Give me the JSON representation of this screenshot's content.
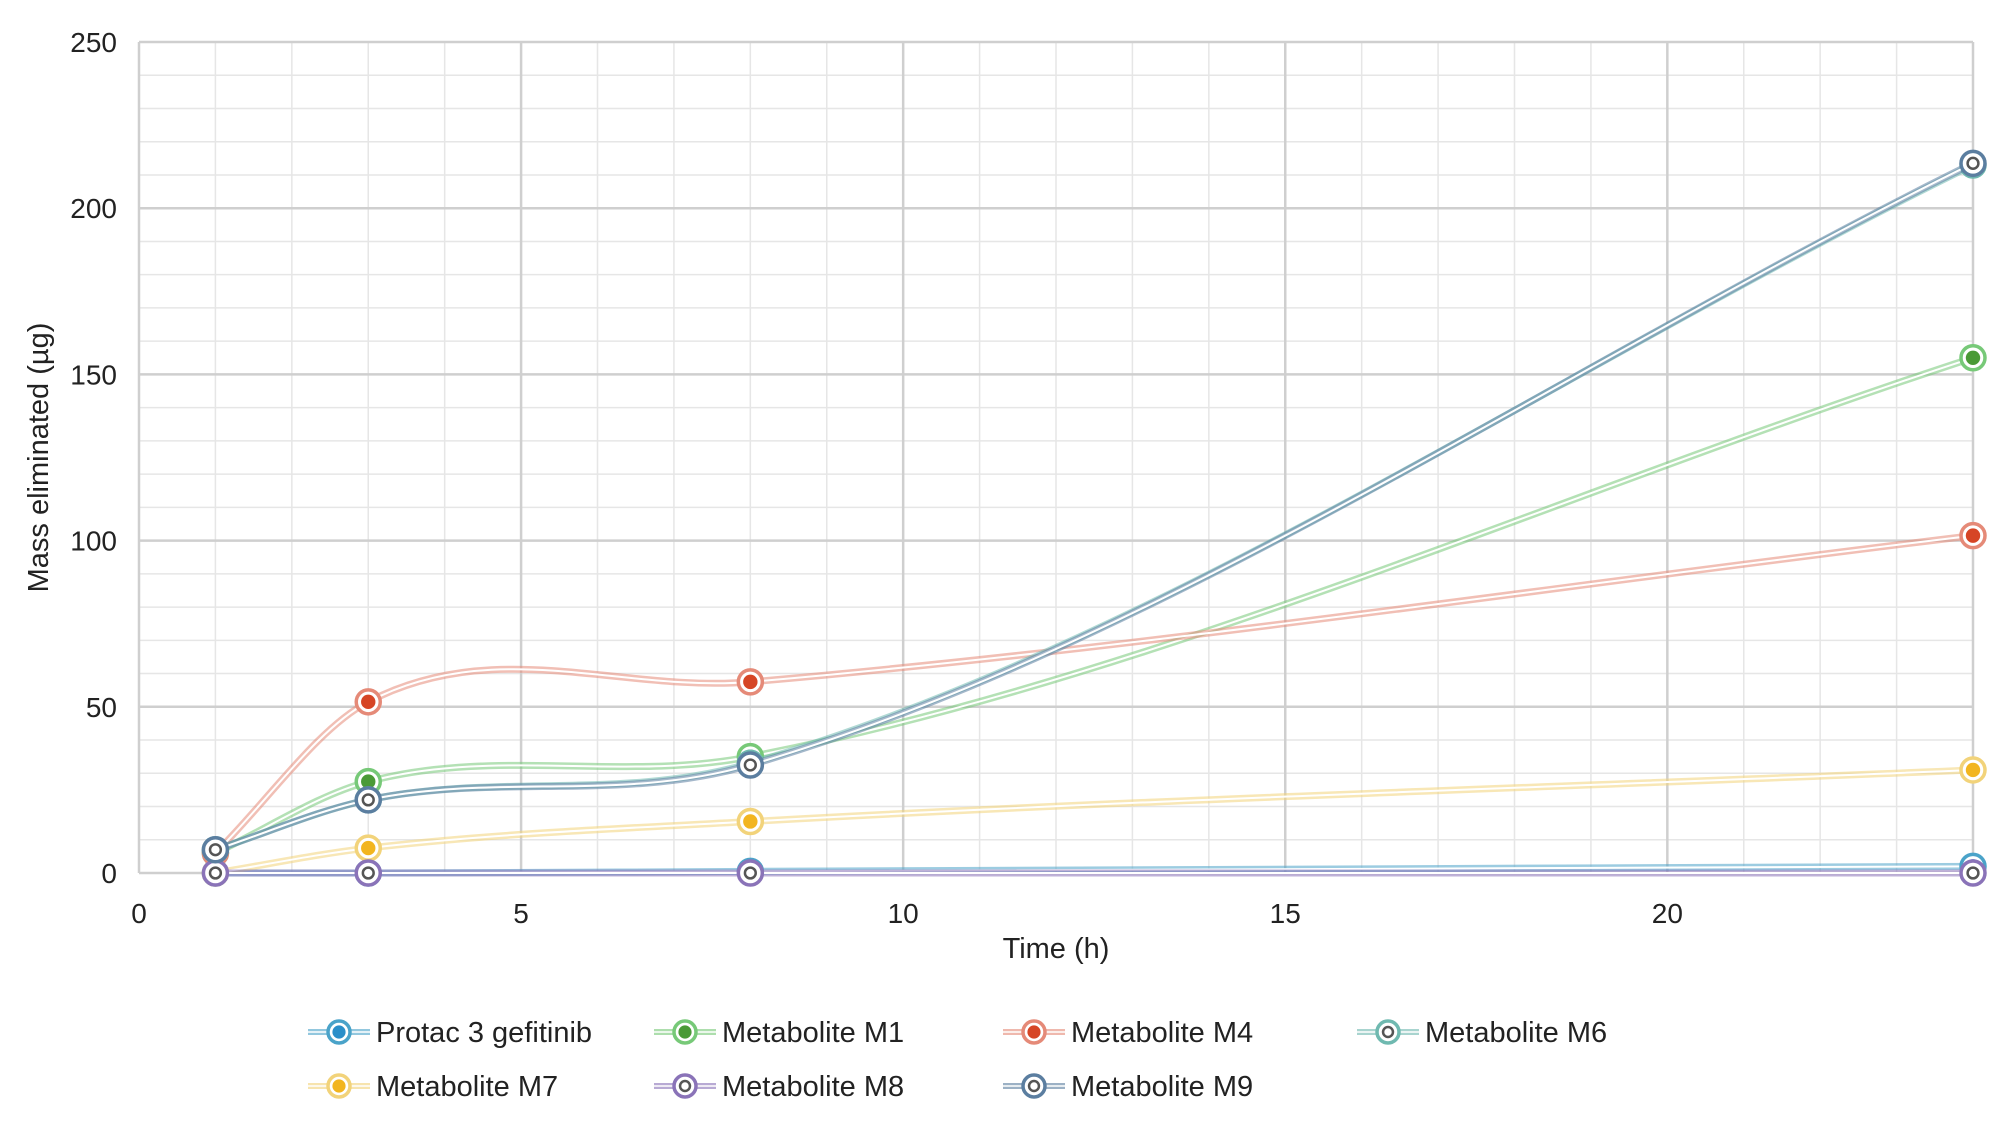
{
  "chart_data": {
    "type": "line",
    "title": "",
    "xlabel": "Time (h)",
    "ylabel": "Mass eliminated (µg)",
    "xlim": [
      0,
      24
    ],
    "ylim": [
      0,
      250
    ],
    "xticks": [
      0,
      5,
      10,
      15,
      20
    ],
    "yticks": [
      0,
      50,
      100,
      150,
      200,
      250
    ],
    "x_minor_step": 1,
    "y_minor_step": 10,
    "grid": true,
    "legend_position": "bottom",
    "x": [
      1,
      3,
      8,
      24
    ],
    "series": [
      {
        "name": "Protac 3 gefitinib",
        "values": [
          0,
          0,
          0.5,
          2
        ],
        "color": "#4aa3c9",
        "marker_fill": "#2b8fc9",
        "marker_style": "dot"
      },
      {
        "name": "Metabolite M1",
        "values": [
          6,
          27.5,
          35,
          155
        ],
        "color": "#77c978",
        "marker_fill": "#4a9a36",
        "marker_style": "dot"
      },
      {
        "name": "Metabolite M4",
        "values": [
          6,
          51.5,
          57.5,
          101.5
        ],
        "color": "#e58a78",
        "marker_fill": "#d64525",
        "marker_style": "dot"
      },
      {
        "name": "Metabolite M6",
        "values": [
          7,
          22,
          33,
          213
        ],
        "color": "#6fb9b0",
        "marker_fill": "#ffffff",
        "marker_style": "ring"
      },
      {
        "name": "Metabolite M7",
        "values": [
          0,
          7.5,
          15.5,
          31
        ],
        "color": "#f2d37a",
        "marker_fill": "#f2b51f",
        "marker_style": "dot"
      },
      {
        "name": "Metabolite M8",
        "values": [
          0,
          0,
          0,
          0
        ],
        "color": "#8a73b8",
        "marker_fill": "#ffffff",
        "marker_style": "ring"
      },
      {
        "name": "Metabolite M9",
        "values": [
          7,
          22,
          32.5,
          213.5
        ],
        "color": "#5b7ea0",
        "marker_fill": "#ffffff",
        "marker_style": "ring"
      }
    ]
  }
}
